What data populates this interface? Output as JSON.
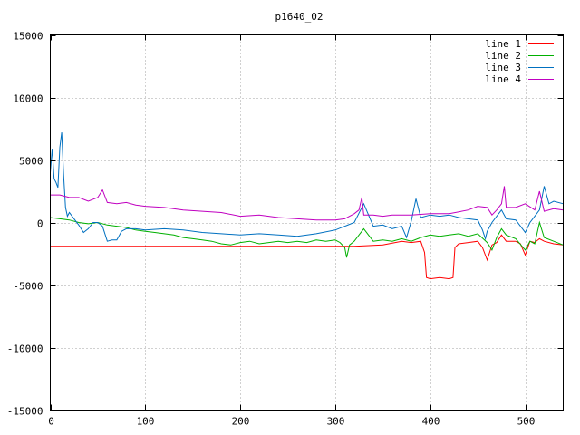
{
  "chart_data": {
    "type": "line",
    "title": "p1640_02",
    "xlabel": "",
    "ylabel": "",
    "xlim": [
      0,
      540
    ],
    "ylim": [
      -15000,
      15000
    ],
    "xticks": [
      0,
      100,
      200,
      300,
      400,
      500
    ],
    "yticks": [
      -15000,
      -10000,
      -5000,
      0,
      5000,
      10000,
      15000
    ],
    "grid": true,
    "legend_position": "top-right",
    "series": [
      {
        "name": "line 1",
        "color": "#ff0000",
        "x": [
          0,
          40,
          80,
          120,
          160,
          200,
          240,
          280,
          320,
          350,
          370,
          380,
          390,
          394,
          396,
          400,
          410,
          420,
          424,
          426,
          430,
          440,
          450,
          455,
          460,
          465,
          470,
          475,
          480,
          490,
          495,
          500,
          505,
          510,
          515,
          520,
          530,
          540
        ],
        "y": [
          -1900,
          -1900,
          -1900,
          -1900,
          -1900,
          -1900,
          -1900,
          -1900,
          -1900,
          -1800,
          -1500,
          -1600,
          -1500,
          -2400,
          -4400,
          -4500,
          -4400,
          -4500,
          -4400,
          -2000,
          -1700,
          -1600,
          -1500,
          -2000,
          -3000,
          -1800,
          -1600,
          -1000,
          -1500,
          -1500,
          -1700,
          -2600,
          -1500,
          -1600,
          -1300,
          -1500,
          -1700,
          -1800
        ]
      },
      {
        "name": "line 2",
        "color": "#00b000",
        "x": [
          0,
          10,
          20,
          30,
          40,
          50,
          60,
          70,
          80,
          90,
          100,
          110,
          120,
          130,
          140,
          150,
          160,
          170,
          180,
          190,
          200,
          210,
          220,
          230,
          240,
          250,
          260,
          270,
          280,
          290,
          300,
          305,
          310,
          312,
          315,
          320,
          325,
          330,
          335,
          340,
          350,
          360,
          370,
          380,
          390,
          400,
          410,
          420,
          430,
          440,
          450,
          460,
          465,
          470,
          475,
          480,
          490,
          500,
          505,
          510,
          515,
          520,
          530,
          540
        ],
        "y": [
          400,
          300,
          200,
          0,
          -100,
          0,
          -200,
          -300,
          -400,
          -600,
          -700,
          -800,
          -900,
          -1000,
          -1200,
          -1300,
          -1400,
          -1500,
          -1700,
          -1800,
          -1600,
          -1500,
          -1700,
          -1600,
          -1500,
          -1600,
          -1500,
          -1600,
          -1400,
          -1500,
          -1400,
          -1600,
          -2000,
          -2800,
          -1800,
          -1500,
          -1000,
          -500,
          -1000,
          -1500,
          -1400,
          -1500,
          -1300,
          -1500,
          -1200,
          -1000,
          -1100,
          -1000,
          -900,
          -1100,
          -900,
          -1600,
          -2200,
          -1200,
          -500,
          -1000,
          -1300,
          -2200,
          -1500,
          -1700,
          0,
          -1200,
          -1500,
          -1800
        ]
      },
      {
        "name": "line 3",
        "color": "#0070c0",
        "x": [
          0,
          2,
          4,
          6,
          8,
          10,
          12,
          14,
          16,
          18,
          20,
          25,
          30,
          35,
          40,
          45,
          50,
          55,
          60,
          65,
          70,
          75,
          80,
          90,
          100,
          120,
          140,
          160,
          180,
          200,
          220,
          240,
          260,
          280,
          300,
          320,
          330,
          340,
          350,
          360,
          370,
          375,
          380,
          385,
          390,
          400,
          410,
          420,
          430,
          440,
          450,
          455,
          458,
          460,
          465,
          470,
          475,
          480,
          490,
          500,
          505,
          510,
          515,
          520,
          525,
          530,
          540
        ],
        "y": [
          4000,
          5900,
          3500,
          3200,
          2800,
          6000,
          7200,
          3800,
          1200,
          500,
          800,
          300,
          -200,
          -800,
          -500,
          0,
          0,
          -300,
          -1500,
          -1400,
          -1400,
          -700,
          -500,
          -500,
          -600,
          -500,
          -600,
          -800,
          -900,
          -1000,
          -900,
          -1000,
          -1100,
          -900,
          -600,
          0,
          1500,
          -300,
          -200,
          -500,
          -300,
          -1200,
          100,
          1900,
          400,
          600,
          500,
          600,
          400,
          300,
          200,
          -600,
          -1300,
          -700,
          0,
          500,
          1000,
          300,
          200,
          -800,
          0,
          500,
          1000,
          2900,
          1500,
          1700,
          1500
        ]
      },
      {
        "name": "line 4",
        "color": "#c000c0",
        "x": [
          0,
          10,
          20,
          30,
          40,
          50,
          55,
          60,
          70,
          80,
          90,
          100,
          120,
          140,
          160,
          180,
          200,
          220,
          240,
          260,
          280,
          300,
          310,
          320,
          325,
          328,
          330,
          340,
          350,
          360,
          380,
          400,
          420,
          440,
          450,
          460,
          465,
          470,
          475,
          478,
          480,
          490,
          500,
          510,
          515,
          520,
          530,
          540
        ],
        "y": [
          2200,
          2200,
          2000,
          2000,
          1700,
          2000,
          2600,
          1600,
          1500,
          1600,
          1400,
          1300,
          1200,
          1000,
          900,
          800,
          500,
          600,
          400,
          300,
          200,
          200,
          300,
          700,
          1000,
          2000,
          600,
          600,
          500,
          600,
          600,
          700,
          700,
          1000,
          1300,
          1200,
          600,
          1000,
          1500,
          2900,
          1200,
          1200,
          1500,
          1000,
          2500,
          900,
          1100,
          1000
        ]
      }
    ]
  }
}
